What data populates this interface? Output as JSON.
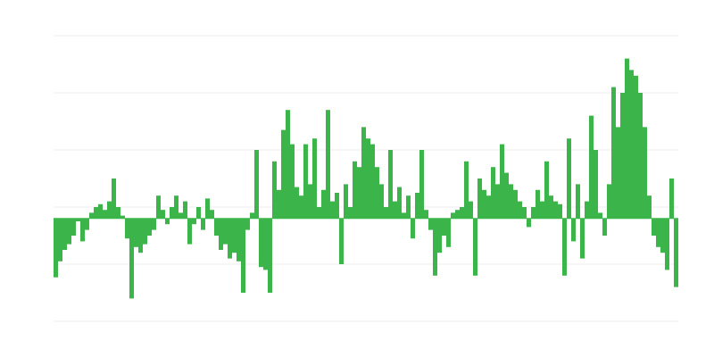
{
  "chart_data": {
    "type": "bar",
    "color": "#3bb54a",
    "grid": true,
    "ylim": [
      -1.8,
      3.2
    ],
    "yticks": [
      -1.8,
      -0.8,
      0.2,
      1.2,
      2.2,
      3.2
    ],
    "values": [
      -1.03,
      -0.75,
      -0.55,
      -0.45,
      -0.3,
      -0.05,
      -0.4,
      -0.2,
      0.1,
      0.2,
      0.25,
      0.15,
      0.3,
      0.7,
      0.2,
      0.05,
      -0.35,
      -1.4,
      -0.5,
      -0.6,
      -0.45,
      -0.3,
      -0.2,
      0.4,
      0.15,
      -0.1,
      0.2,
      0.4,
      0.1,
      0.3,
      -0.45,
      -0.1,
      0.2,
      -0.2,
      0.35,
      0.15,
      -0.3,
      -0.55,
      -0.45,
      -0.7,
      -0.6,
      -0.75,
      -1.3,
      -0.2,
      0.1,
      1.2,
      -0.85,
      -0.9,
      -1.3,
      1.0,
      0.5,
      1.55,
      1.9,
      1.3,
      0.55,
      0.4,
      1.3,
      0.6,
      1.4,
      0.2,
      0.5,
      1.9,
      0.3,
      0.45,
      -0.8,
      0.6,
      0.2,
      1.0,
      0.9,
      1.6,
      1.4,
      1.3,
      0.9,
      0.6,
      0.2,
      1.2,
      0.3,
      0.55,
      0.1,
      0.4,
      -0.35,
      0.45,
      1.2,
      0.15,
      -0.2,
      -1.0,
      -0.6,
      -0.3,
      -0.5,
      0.1,
      0.15,
      0.2,
      1.0,
      0.3,
      -1.0,
      0.7,
      0.5,
      0.4,
      0.9,
      0.6,
      1.3,
      0.8,
      0.6,
      0.5,
      0.3,
      0.2,
      -0.15,
      0.2,
      0.5,
      0.3,
      1.0,
      0.4,
      0.3,
      0.25,
      -1.0,
      1.4,
      -0.4,
      0.6,
      -0.7,
      0.3,
      1.8,
      1.2,
      0.1,
      -0.3,
      0.6,
      2.3,
      1.6,
      2.2,
      2.8,
      2.6,
      2.5,
      2.2,
      1.6,
      0.4,
      -0.3,
      -0.5,
      -0.6,
      -0.9,
      0.7,
      -1.2
    ]
  }
}
